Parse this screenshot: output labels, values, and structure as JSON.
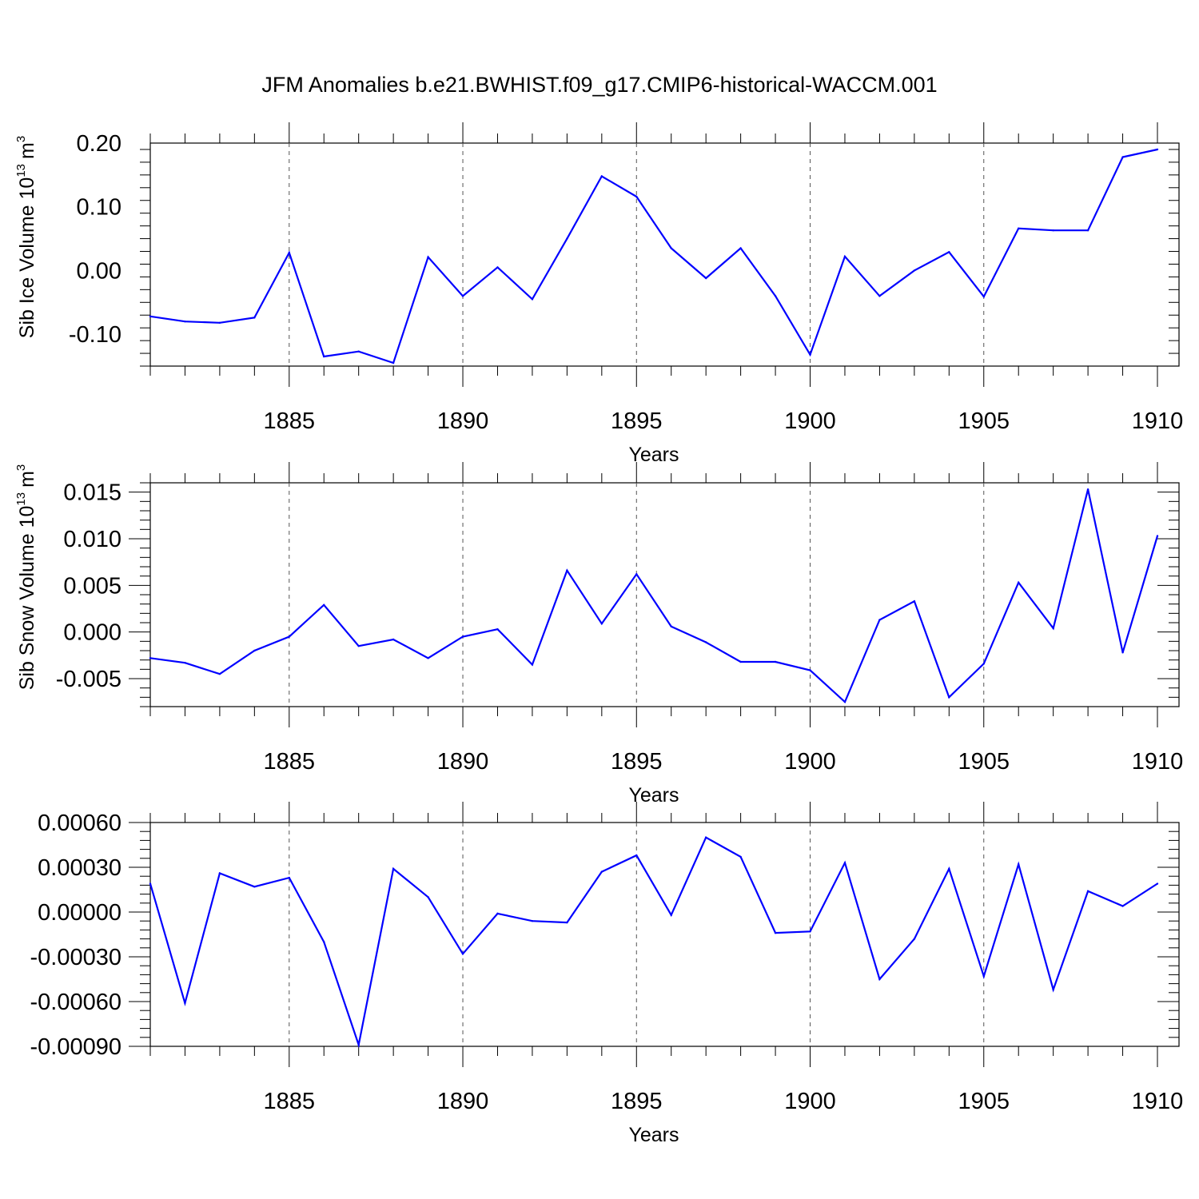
{
  "title": "JFM Anomalies b.e21.BWHIST.f09_g17.CMIP6-historical-WACCM.001",
  "colors": {
    "series": "#0000ff",
    "axes": "#000000",
    "grid": "#555555"
  },
  "chart_data": [
    {
      "type": "line",
      "ylabel_main": "Sib Ice Volume 10",
      "ylabel_exp": "13",
      "ylabel_unit": "m",
      "ylabel_unit_exp": "3",
      "xlabel": "Years",
      "xlim": [
        1881,
        1910
      ],
      "ylim": [
        -0.15,
        0.2
      ],
      "grid": "vertical dashed at 1885, 1890, 1895, 1900, 1905",
      "x_ticks": [
        "1885",
        "1890",
        "1895",
        "1900",
        "1905",
        "1910"
      ],
      "y_ticks": [
        "0.20",
        "0.10",
        "0.00",
        "-0.10"
      ],
      "y_tick_values": [
        0.2,
        0.1,
        0.0,
        -0.1
      ],
      "series": [
        {
          "x": [
            1881,
            1882,
            1883,
            1884,
            1885,
            1886,
            1887,
            1888,
            1889,
            1890,
            1891,
            1892,
            1893,
            1894,
            1895,
            1896,
            1897,
            1898,
            1899,
            1900,
            1901,
            1902,
            1903,
            1904,
            1905,
            1906,
            1907,
            1908,
            1909,
            1910
          ],
          "values": [
            -0.072,
            -0.08,
            -0.082,
            -0.074,
            0.028,
            -0.135,
            -0.127,
            -0.145,
            0.021,
            -0.04,
            0.005,
            -0.045,
            0.05,
            0.148,
            0.116,
            0.035,
            -0.012,
            0.035,
            -0.04,
            -0.132,
            0.022,
            -0.04,
            0.0,
            0.029,
            -0.041,
            0.066,
            0.063,
            0.063,
            0.178,
            0.19
          ]
        }
      ]
    },
    {
      "type": "line",
      "ylabel_main": "Sib Snow Volume 10",
      "ylabel_exp": "13",
      "ylabel_unit": "m",
      "ylabel_unit_exp": "3",
      "xlabel": "Years",
      "xlim": [
        1881,
        1910
      ],
      "ylim": [
        -0.008,
        0.016
      ],
      "grid": "vertical dashed at 1885, 1890, 1895, 1900, 1905",
      "x_ticks": [
        "1885",
        "1890",
        "1895",
        "1900",
        "1905",
        "1910"
      ],
      "y_ticks": [
        "0.015",
        "0.010",
        "0.005",
        "0.000",
        "-0.005"
      ],
      "y_tick_values": [
        0.015,
        0.01,
        0.005,
        0.0,
        -0.005
      ],
      "series": [
        {
          "x": [
            1881,
            1882,
            1883,
            1884,
            1885,
            1886,
            1887,
            1888,
            1889,
            1890,
            1891,
            1892,
            1893,
            1894,
            1895,
            1896,
            1897,
            1898,
            1899,
            1900,
            1901,
            1902,
            1903,
            1904,
            1905,
            1906,
            1907,
            1908,
            1909,
            1910
          ],
          "values": [
            -0.0028,
            -0.0033,
            -0.0045,
            -0.002,
            -0.0005,
            0.0029,
            -0.0015,
            -0.0008,
            -0.0028,
            -0.0005,
            0.0003,
            -0.0035,
            0.0066,
            0.0009,
            0.0062,
            0.0006,
            -0.0011,
            -0.0032,
            -0.0032,
            -0.0041,
            -0.0075,
            0.0013,
            0.0033,
            -0.007,
            -0.0034,
            0.0053,
            0.0004,
            0.0153,
            -0.0022,
            0.0103
          ]
        }
      ]
    },
    {
      "type": "line",
      "xlabel": "Years",
      "xlim": [
        1881,
        1910
      ],
      "ylim": [
        -0.0009,
        0.0006
      ],
      "grid": "vertical dashed at 1885, 1890, 1895, 1900, 1905",
      "x_ticks": [
        "1885",
        "1890",
        "1895",
        "1900",
        "1905",
        "1910"
      ],
      "y_ticks": [
        "0.00060",
        "0.00030",
        "0.00000",
        "-0.00030",
        "-0.00060",
        "-0.00090"
      ],
      "y_tick_values": [
        0.0006,
        0.0003,
        0.0,
        -0.0003,
        -0.0006,
        -0.0009
      ],
      "series": [
        {
          "x": [
            1881,
            1882,
            1883,
            1884,
            1885,
            1886,
            1887,
            1888,
            1889,
            1890,
            1891,
            1892,
            1893,
            1894,
            1895,
            1896,
            1897,
            1898,
            1899,
            1900,
            1901,
            1902,
            1903,
            1904,
            1905,
            1906,
            1907,
            1908,
            1909,
            1910
          ],
          "values": [
            0.00019,
            -0.00061,
            0.00026,
            0.00017,
            0.00023,
            -0.0002,
            -0.00089,
            0.00029,
            0.0001,
            -0.00028,
            -1e-05,
            -6e-05,
            -7e-05,
            0.00027,
            0.00038,
            -2e-05,
            0.0005,
            0.00037,
            -0.00014,
            -0.00013,
            0.00033,
            -0.00045,
            -0.00018,
            0.00029,
            -0.00043,
            0.00032,
            -0.00052,
            0.00014,
            4e-05,
            0.00019
          ]
        }
      ]
    }
  ]
}
